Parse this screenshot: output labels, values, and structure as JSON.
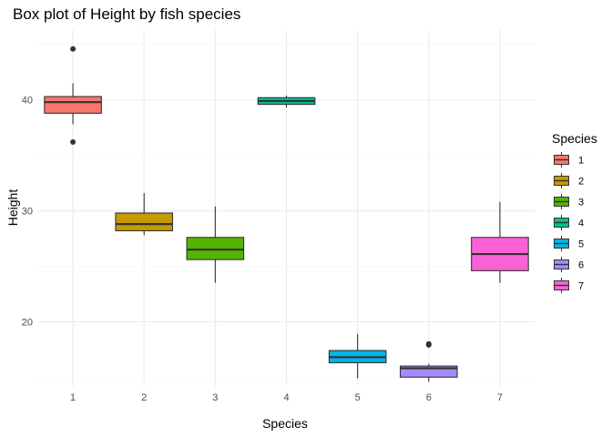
{
  "chart_data": {
    "type": "boxplot",
    "title": "Box plot of Height by fish species",
    "xlabel": "Species",
    "ylabel": "Height",
    "categories": [
      "1",
      "2",
      "3",
      "4",
      "5",
      "6",
      "7"
    ],
    "yticks": [
      20,
      30,
      40
    ],
    "ylim": [
      14.2,
      46.3
    ],
    "grid": true,
    "legend": {
      "title": "Species",
      "placement": "right",
      "entries": [
        "1",
        "2",
        "3",
        "4",
        "5",
        "6",
        "7"
      ]
    },
    "boxes": [
      {
        "category": "1",
        "color": "#F8766D",
        "whisker_low": 37.8,
        "q1": 38.8,
        "median": 39.8,
        "q3": 40.3,
        "whisker_high": 41.5,
        "outliers": [
          44.6,
          36.2
        ]
      },
      {
        "category": "2",
        "color": "#C49A00",
        "whisker_low": 27.8,
        "q1": 28.2,
        "median": 28.8,
        "q3": 29.8,
        "whisker_high": 31.6,
        "outliers": []
      },
      {
        "category": "3",
        "color": "#53B400",
        "whisker_low": 23.5,
        "q1": 25.6,
        "median": 26.5,
        "q3": 27.6,
        "whisker_high": 30.4,
        "outliers": []
      },
      {
        "category": "4",
        "color": "#00C094",
        "whisker_low": 39.3,
        "q1": 39.6,
        "median": 39.9,
        "q3": 40.2,
        "whisker_high": 40.4,
        "outliers": []
      },
      {
        "category": "5",
        "color": "#00B6EB",
        "whisker_low": 14.9,
        "q1": 16.3,
        "median": 16.8,
        "q3": 17.4,
        "whisker_high": 18.9,
        "outliers": []
      },
      {
        "category": "6",
        "color": "#A58AFF",
        "whisker_low": 14.6,
        "q1": 15.0,
        "median": 15.8,
        "q3": 16.0,
        "whisker_high": 16.2,
        "outliers": [
          17.9,
          18.0
        ]
      },
      {
        "category": "7",
        "color": "#FB61D7",
        "whisker_low": 23.5,
        "q1": 24.6,
        "median": 26.1,
        "q3": 27.6,
        "whisker_high": 30.8,
        "outliers": []
      }
    ]
  }
}
